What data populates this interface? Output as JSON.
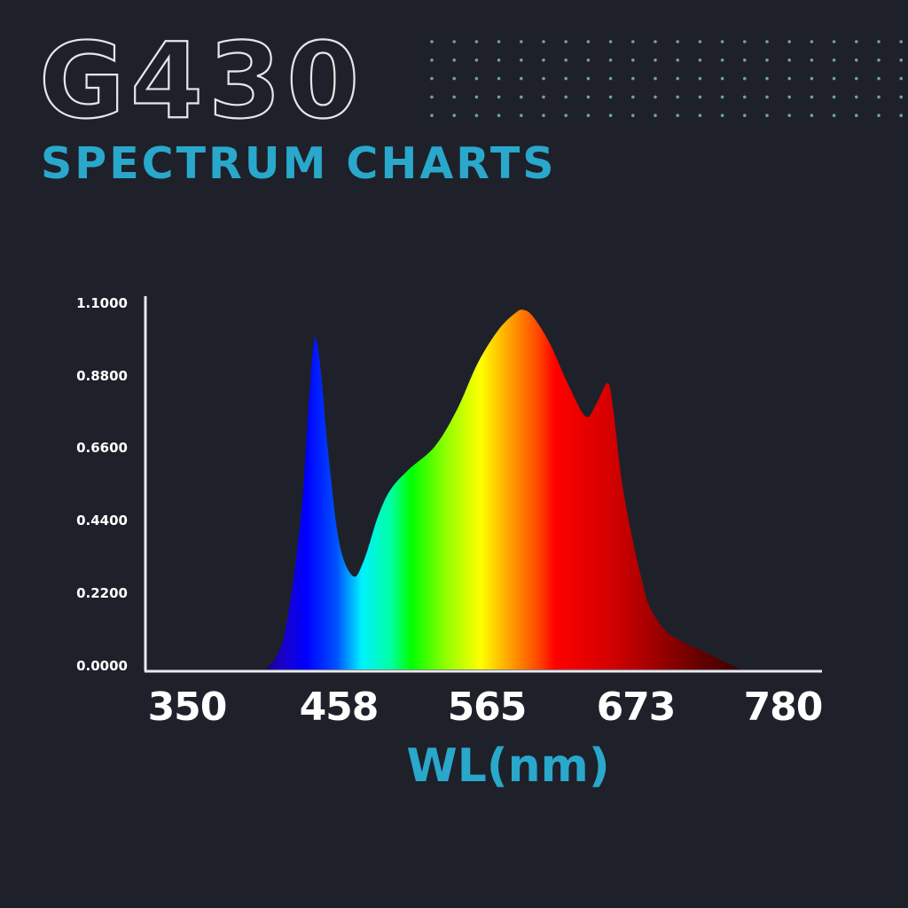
{
  "header": {
    "model": "G430",
    "subtitle": "SPECTRUM CHARTS"
  },
  "colors": {
    "background": "#1e212a",
    "accent": "#29a8cc",
    "axis": "#e8e8ee",
    "text": "#ffffff",
    "dots": "#7fb8b4"
  },
  "chart_data": {
    "type": "area",
    "title": "G430 Spectrum Charts",
    "xlabel": "WL(nm)",
    "ylabel": "",
    "xlim": [
      350,
      780
    ],
    "ylim": [
      0,
      1.1
    ],
    "x_ticks": [
      "350",
      "458",
      "565",
      "673",
      "780"
    ],
    "y_ticks": [
      "1.1000",
      "0.8800",
      "0.6600",
      "0.4400",
      "0.2200",
      "0.0000"
    ],
    "grid": false,
    "legend": null,
    "fill": "visible-spectrum rainbow gradient by wavelength",
    "x": [
      407,
      420,
      432,
      438,
      442,
      446,
      452,
      460,
      470,
      478,
      488,
      497,
      510,
      529,
      545,
      560,
      575,
      587,
      593,
      600,
      612,
      625,
      638,
      646,
      654,
      658,
      664,
      671,
      678,
      684,
      695,
      705,
      720,
      735,
      750
    ],
    "values": [
      0.0,
      0.1,
      0.45,
      0.8,
      0.99,
      0.92,
      0.65,
      0.38,
      0.28,
      0.33,
      0.46,
      0.54,
      0.6,
      0.67,
      0.78,
      0.92,
      1.02,
      1.07,
      1.08,
      1.06,
      0.98,
      0.86,
      0.76,
      0.8,
      0.86,
      0.78,
      0.57,
      0.41,
      0.28,
      0.19,
      0.12,
      0.09,
      0.06,
      0.03,
      0.0
    ],
    "peaks": [
      {
        "wavelength_nm": 442,
        "value": 0.99
      },
      {
        "wavelength_nm": 593,
        "value": 1.08
      },
      {
        "wavelength_nm": 654,
        "value": 0.86
      }
    ]
  }
}
